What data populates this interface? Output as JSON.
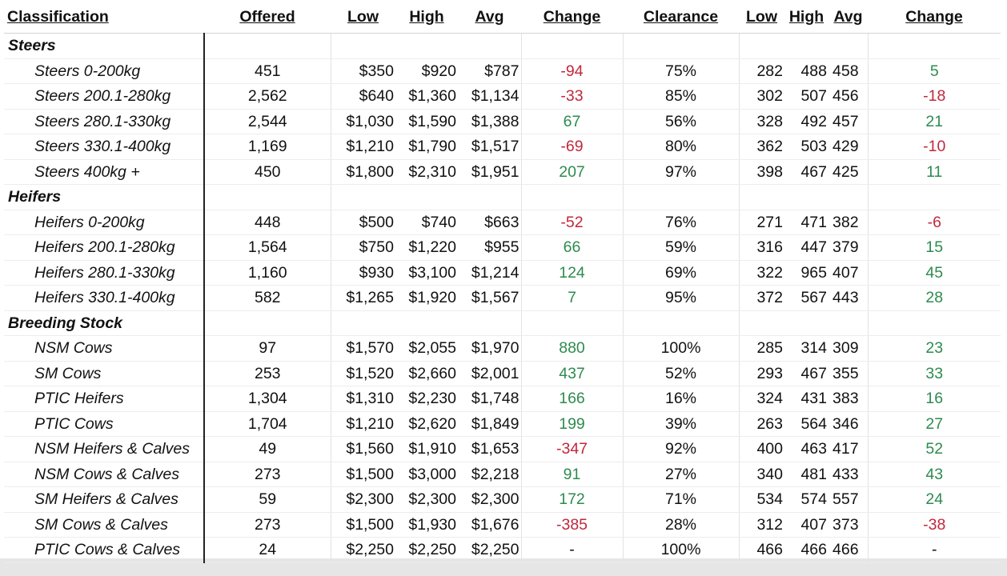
{
  "headers": {
    "classification": "Classification",
    "offered": "Offered",
    "low": "Low",
    "high": "High",
    "avg": "Avg",
    "change": "Change",
    "clearance": "Clearance",
    "low2": "Low",
    "high2": "High",
    "avg2": "Avg",
    "change2": "Change"
  },
  "colors": {
    "positive": "#2e8b4f",
    "negative": "#c0283c"
  },
  "groups": [
    {
      "name": "Steers",
      "rows": [
        {
          "name": "Steers 0-200kg",
          "offered": "451",
          "low": "$350",
          "high": "$920",
          "avg": "$787",
          "change": "-94",
          "clearance": "75%",
          "low2": "282",
          "high2": "488",
          "avg2": "458",
          "change2": "5"
        },
        {
          "name": "Steers 200.1-280kg",
          "offered": "2,562",
          "low": "$640",
          "high": "$1,360",
          "avg": "$1,134",
          "change": "-33",
          "clearance": "85%",
          "low2": "302",
          "high2": "507",
          "avg2": "456",
          "change2": "-18"
        },
        {
          "name": "Steers 280.1-330kg",
          "offered": "2,544",
          "low": "$1,030",
          "high": "$1,590",
          "avg": "$1,388",
          "change": "67",
          "clearance": "56%",
          "low2": "328",
          "high2": "492",
          "avg2": "457",
          "change2": "21"
        },
        {
          "name": "Steers 330.1-400kg",
          "offered": "1,169",
          "low": "$1,210",
          "high": "$1,790",
          "avg": "$1,517",
          "change": "-69",
          "clearance": "80%",
          "low2": "362",
          "high2": "503",
          "avg2": "429",
          "change2": "-10"
        },
        {
          "name": "Steers 400kg +",
          "offered": "450",
          "low": "$1,800",
          "high": "$2,310",
          "avg": "$1,951",
          "change": "207",
          "clearance": "97%",
          "low2": "398",
          "high2": "467",
          "avg2": "425",
          "change2": "11"
        }
      ]
    },
    {
      "name": "Heifers",
      "rows": [
        {
          "name": "Heifers 0-200kg",
          "offered": "448",
          "low": "$500",
          "high": "$740",
          "avg": "$663",
          "change": "-52",
          "clearance": "76%",
          "low2": "271",
          "high2": "471",
          "avg2": "382",
          "change2": "-6"
        },
        {
          "name": "Heifers 200.1-280kg",
          "offered": "1,564",
          "low": "$750",
          "high": "$1,220",
          "avg": "$955",
          "change": "66",
          "clearance": "59%",
          "low2": "316",
          "high2": "447",
          "avg2": "379",
          "change2": "15"
        },
        {
          "name": "Heifers 280.1-330kg",
          "offered": "1,160",
          "low": "$930",
          "high": "$3,100",
          "avg": "$1,214",
          "change": "124",
          "clearance": "69%",
          "low2": "322",
          "high2": "965",
          "avg2": "407",
          "change2": "45"
        },
        {
          "name": "Heifers 330.1-400kg",
          "offered": "582",
          "low": "$1,265",
          "high": "$1,920",
          "avg": "$1,567",
          "change": "7",
          "clearance": "95%",
          "low2": "372",
          "high2": "567",
          "avg2": "443",
          "change2": "28"
        }
      ]
    },
    {
      "name": "Breeding Stock",
      "rows": [
        {
          "name": "NSM Cows",
          "offered": "97",
          "low": "$1,570",
          "high": "$2,055",
          "avg": "$1,970",
          "change": "880",
          "clearance": "100%",
          "low2": "285",
          "high2": "314",
          "avg2": "309",
          "change2": "23"
        },
        {
          "name": "SM Cows",
          "offered": "253",
          "low": "$1,520",
          "high": "$2,660",
          "avg": "$2,001",
          "change": "437",
          "clearance": "52%",
          "low2": "293",
          "high2": "467",
          "avg2": "355",
          "change2": "33"
        },
        {
          "name": "PTIC Heifers",
          "offered": "1,304",
          "low": "$1,310",
          "high": "$2,230",
          "avg": "$1,748",
          "change": "166",
          "clearance": "16%",
          "low2": "324",
          "high2": "431",
          "avg2": "383",
          "change2": "16"
        },
        {
          "name": "PTIC Cows",
          "offered": "1,704",
          "low": "$1,210",
          "high": "$2,620",
          "avg": "$1,849",
          "change": "199",
          "clearance": "39%",
          "low2": "263",
          "high2": "564",
          "avg2": "346",
          "change2": "27"
        },
        {
          "name": "NSM Heifers & Calves",
          "offered": "49",
          "low": "$1,560",
          "high": "$1,910",
          "avg": "$1,653",
          "change": "-347",
          "clearance": "92%",
          "low2": "400",
          "high2": "463",
          "avg2": "417",
          "change2": "52"
        },
        {
          "name": "NSM Cows & Calves",
          "offered": "273",
          "low": "$1,500",
          "high": "$3,000",
          "avg": "$2,218",
          "change": "91",
          "clearance": "27%",
          "low2": "340",
          "high2": "481",
          "avg2": "433",
          "change2": "43"
        },
        {
          "name": "SM Heifers & Calves",
          "offered": "59",
          "low": "$2,300",
          "high": "$2,300",
          "avg": "$2,300",
          "change": "172",
          "clearance": "71%",
          "low2": "534",
          "high2": "574",
          "avg2": "557",
          "change2": "24"
        },
        {
          "name": "SM Cows & Calves",
          "offered": "273",
          "low": "$1,500",
          "high": "$1,930",
          "avg": "$1,676",
          "change": "-385",
          "clearance": "28%",
          "low2": "312",
          "high2": "407",
          "avg2": "373",
          "change2": "-38"
        },
        {
          "name": "PTIC Cows & Calves",
          "offered": "24",
          "low": "$2,250",
          "high": "$2,250",
          "avg": "$2,250",
          "change": "-",
          "clearance": "100%",
          "low2": "466",
          "high2": "466",
          "avg2": "466",
          "change2": "-"
        }
      ]
    }
  ]
}
